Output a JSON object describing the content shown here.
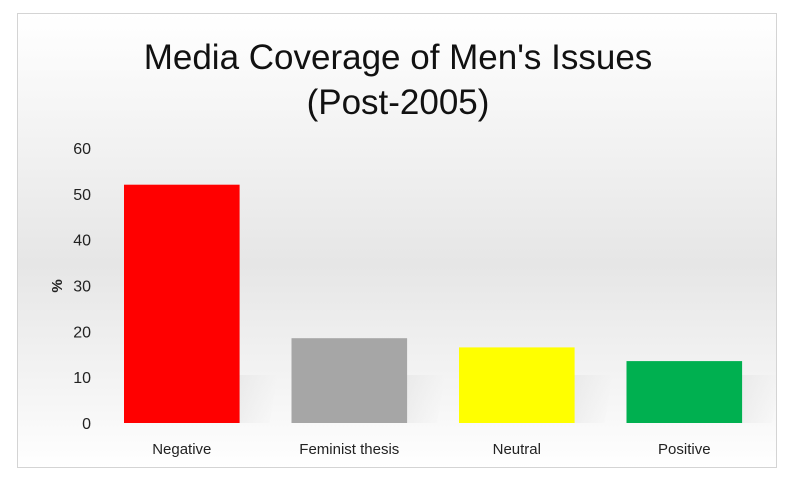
{
  "chart_data": {
    "type": "bar",
    "title": [
      "Media Coverage of Men's Issues",
      "(Post-2005)"
    ],
    "ylabel": "%",
    "xlabel": "",
    "categories": [
      "Negative",
      "Feminist thesis",
      "Neutral",
      "Positive"
    ],
    "values": [
      52,
      18.5,
      16.5,
      13.5
    ],
    "colors": [
      "#ff0000",
      "#a6a6a6",
      "#ffff00",
      "#00b050"
    ],
    "ylim": [
      0,
      60
    ],
    "yticks": [
      "0",
      "10",
      "20",
      "30",
      "40",
      "50",
      "60"
    ],
    "grid": false,
    "legend": "none"
  }
}
